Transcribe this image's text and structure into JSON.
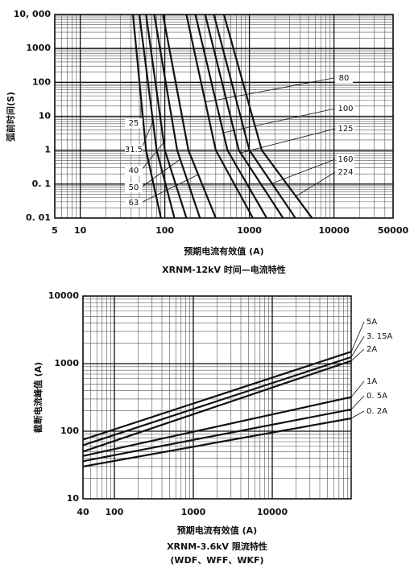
{
  "chart_data": [
    {
      "type": "line",
      "title": "XRNM-12kV 时间—电流特性",
      "x_label": "预期电流有效值 (A)",
      "y_label": "弧前时间(S)",
      "log_x": true,
      "log_y": true,
      "grid": true,
      "xlim": [
        5,
        50000
      ],
      "xticks": [
        5,
        10,
        100,
        1000,
        10000,
        50000
      ],
      "ylim": [
        0.01,
        10000
      ],
      "yticks": [
        {
          "value": 0.01,
          "label": "0. 01"
        },
        {
          "value": 0.1,
          "label": "0. 1"
        },
        1,
        10,
        100,
        1000,
        {
          "value": 10000,
          "label": "10, 000"
        }
      ],
      "series": [
        {
          "name": "25",
          "color": "#111",
          "x": [
            42,
            60,
            90
          ],
          "values": [
            10000,
            1,
            0.01
          ]
        },
        {
          "name": "31.5",
          "color": "#111",
          "x": [
            50,
            80,
            130
          ],
          "values": [
            10000,
            1,
            0.01
          ]
        },
        {
          "name": "40",
          "color": "#111",
          "x": [
            60,
            100,
            180
          ],
          "values": [
            10000,
            1,
            0.01
          ]
        },
        {
          "name": "50",
          "color": "#111",
          "x": [
            75,
            140,
            260
          ],
          "values": [
            10000,
            1,
            0.01
          ]
        },
        {
          "name": "63",
          "color": "#111",
          "x": [
            95,
            190,
            400
          ],
          "values": [
            10000,
            1,
            0.01
          ]
        },
        {
          "name": "80",
          "color": "#111",
          "x": [
            180,
            400,
            1100
          ],
          "values": [
            10000,
            1,
            0.01
          ]
        },
        {
          "name": "100",
          "color": "#111",
          "x": [
            230,
            550,
            1600
          ],
          "values": [
            10000,
            1,
            0.01
          ]
        },
        {
          "name": "125",
          "color": "#111",
          "x": [
            300,
            750,
            2500
          ],
          "values": [
            10000,
            1,
            0.01
          ]
        },
        {
          "name": "160",
          "color": "#111",
          "x": [
            380,
            1000,
            3500
          ],
          "values": [
            10000,
            1,
            0.01
          ]
        },
        {
          "name": "224",
          "color": "#111",
          "x": [
            500,
            1400,
            5500
          ],
          "values": [
            10000,
            1,
            0.01
          ]
        }
      ]
    },
    {
      "type": "line",
      "title": "XRNM-3.6kV 限流特性",
      "subtitle": "(WDF、WFF、WKF)",
      "x_label": "预期电流有效值 (A)",
      "y_label": "截断电流峰值 (A)",
      "log_x": true,
      "log_y": true,
      "grid": true,
      "xlim": [
        40,
        100000
      ],
      "xticks": [
        40,
        100,
        1000,
        10000
      ],
      "ylim": [
        10,
        10000
      ],
      "yticks": [
        10,
        100,
        1000,
        10000
      ],
      "series": [
        {
          "name": "5A",
          "color": "#111",
          "x": [
            40,
            100000
          ],
          "values": [
            75,
            1500
          ]
        },
        {
          "name": "3. 15A",
          "color": "#111",
          "x": [
            40,
            100000
          ],
          "values": [
            62,
            1250
          ]
        },
        {
          "name": "2A",
          "color": "#111",
          "x": [
            40,
            100000
          ],
          "values": [
            50,
            1100
          ]
        },
        {
          "name": "1A",
          "color": "#111",
          "x": [
            40,
            100000
          ],
          "values": [
            43,
            320
          ]
        },
        {
          "name": "0. 5A",
          "color": "#111",
          "x": [
            40,
            100000
          ],
          "values": [
            36,
            210
          ]
        },
        {
          "name": "0. 2A",
          "color": "#111",
          "x": [
            40,
            100000
          ],
          "values": [
            30,
            155
          ]
        }
      ]
    }
  ]
}
